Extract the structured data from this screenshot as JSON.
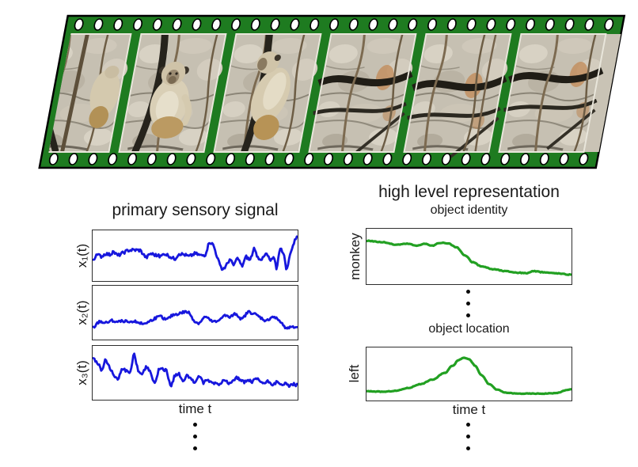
{
  "filmstrip": {
    "description": "slanted green film strip with six frames from a video of a monkey on ropes in front of a rock wall",
    "film_color": "#1e7b20",
    "outline_color": "#000000",
    "hole_color": "#ffffff",
    "frames": [
      {
        "content": "monkey partly visible, climbing among branches and rope"
      },
      {
        "content": "monkey sitting on dark rope, facing camera"
      },
      {
        "content": "monkey sitting on dark rope, side view"
      },
      {
        "content": "rock wall with dark ropes and vines"
      },
      {
        "content": "rock wall with dark ropes and vines"
      },
      {
        "content": "rock wall with dark ropes and vines, cut by strip edge"
      }
    ]
  },
  "left_panel": {
    "title": "primary sensory signal",
    "xlabel": "time t"
  },
  "right_panel": {
    "title": "high level representation",
    "xlabel": "time t"
  },
  "colors": {
    "signal_blue": "#1717dd",
    "representation_green": "#22a022",
    "plot_border": "#2e2e2e",
    "text": "#1a1a1a",
    "ellipsis_dots": "#0a0a0a"
  },
  "chart_data": [
    {
      "type": "line",
      "id": "x1",
      "ylabel": "x₁(t)",
      "color": "#1717dd",
      "stroke_width": 2.8,
      "smooth": false,
      "noise": 0.036,
      "seed": 7,
      "samples": 210,
      "xlabel": "time t",
      "ylim": [
        0,
        1
      ],
      "grid": false,
      "anchors": [
        [
          0,
          0.42
        ],
        [
          0.02,
          0.52
        ],
        [
          0.04,
          0.48
        ],
        [
          0.06,
          0.55
        ],
        [
          0.08,
          0.52
        ],
        [
          0.1,
          0.58
        ],
        [
          0.12,
          0.5
        ],
        [
          0.14,
          0.55
        ],
        [
          0.17,
          0.62
        ],
        [
          0.2,
          0.63
        ],
        [
          0.23,
          0.62
        ],
        [
          0.26,
          0.45
        ],
        [
          0.28,
          0.55
        ],
        [
          0.3,
          0.52
        ],
        [
          0.33,
          0.48
        ],
        [
          0.35,
          0.55
        ],
        [
          0.37,
          0.5
        ],
        [
          0.4,
          0.42
        ],
        [
          0.42,
          0.55
        ],
        [
          0.45,
          0.52
        ],
        [
          0.47,
          0.48
        ],
        [
          0.5,
          0.55
        ],
        [
          0.53,
          0.5
        ],
        [
          0.55,
          0.52
        ],
        [
          0.57,
          0.82
        ],
        [
          0.59,
          0.74
        ],
        [
          0.61,
          0.45
        ],
        [
          0.63,
          0.18
        ],
        [
          0.65,
          0.25
        ],
        [
          0.67,
          0.42
        ],
        [
          0.69,
          0.28
        ],
        [
          0.71,
          0.45
        ],
        [
          0.73,
          0.25
        ],
        [
          0.75,
          0.48
        ],
        [
          0.77,
          0.4
        ],
        [
          0.79,
          0.65
        ],
        [
          0.81,
          0.45
        ],
        [
          0.83,
          0.42
        ],
        [
          0.85,
          0.55
        ],
        [
          0.87,
          0.38
        ],
        [
          0.89,
          0.45
        ],
        [
          0.9,
          0.2
        ],
        [
          0.92,
          0.72
        ],
        [
          0.94,
          0.45
        ],
        [
          0.95,
          0.15
        ],
        [
          0.97,
          0.6
        ],
        [
          1,
          0.95
        ]
      ]
    },
    {
      "type": "line",
      "id": "x2",
      "ylabel": "x₂(t)",
      "color": "#1717dd",
      "stroke_width": 2.8,
      "smooth": false,
      "noise": 0.028,
      "seed": 13,
      "samples": 210,
      "xlabel": "time t",
      "ylim": [
        0,
        1
      ],
      "grid": false,
      "anchors": [
        [
          0,
          0.18
        ],
        [
          0.03,
          0.32
        ],
        [
          0.06,
          0.28
        ],
        [
          0.09,
          0.33
        ],
        [
          0.12,
          0.3
        ],
        [
          0.15,
          0.33
        ],
        [
          0.18,
          0.28
        ],
        [
          0.21,
          0.32
        ],
        [
          0.24,
          0.26
        ],
        [
          0.27,
          0.3
        ],
        [
          0.3,
          0.38
        ],
        [
          0.33,
          0.42
        ],
        [
          0.36,
          0.35
        ],
        [
          0.39,
          0.45
        ],
        [
          0.42,
          0.48
        ],
        [
          0.45,
          0.52
        ],
        [
          0.47,
          0.5
        ],
        [
          0.5,
          0.3
        ],
        [
          0.52,
          0.28
        ],
        [
          0.55,
          0.42
        ],
        [
          0.58,
          0.32
        ],
        [
          0.61,
          0.3
        ],
        [
          0.64,
          0.45
        ],
        [
          0.67,
          0.4
        ],
        [
          0.7,
          0.48
        ],
        [
          0.73,
          0.35
        ],
        [
          0.76,
          0.52
        ],
        [
          0.79,
          0.48
        ],
        [
          0.82,
          0.4
        ],
        [
          0.85,
          0.32
        ],
        [
          0.88,
          0.42
        ],
        [
          0.91,
          0.35
        ],
        [
          0.94,
          0.2
        ],
        [
          0.97,
          0.18
        ],
        [
          1,
          0.2
        ]
      ]
    },
    {
      "type": "line",
      "id": "x3",
      "ylabel": "x₃(t)",
      "color": "#1717dd",
      "stroke_width": 2.8,
      "smooth": false,
      "noise": 0.034,
      "seed": 21,
      "samples": 210,
      "xlabel": "time t",
      "ylim": [
        0,
        1
      ],
      "grid": false,
      "anchors": [
        [
          0,
          0.8
        ],
        [
          0.02,
          0.72
        ],
        [
          0.04,
          0.55
        ],
        [
          0.06,
          0.78
        ],
        [
          0.08,
          0.62
        ],
        [
          0.1,
          0.45
        ],
        [
          0.12,
          0.35
        ],
        [
          0.14,
          0.6
        ],
        [
          0.16,
          0.55
        ],
        [
          0.18,
          0.48
        ],
        [
          0.2,
          0.92
        ],
        [
          0.22,
          0.55
        ],
        [
          0.24,
          0.48
        ],
        [
          0.26,
          0.62
        ],
        [
          0.28,
          0.55
        ],
        [
          0.3,
          0.25
        ],
        [
          0.32,
          0.55
        ],
        [
          0.34,
          0.58
        ],
        [
          0.36,
          0.55
        ],
        [
          0.38,
          0.18
        ],
        [
          0.4,
          0.45
        ],
        [
          0.42,
          0.5
        ],
        [
          0.44,
          0.3
        ],
        [
          0.46,
          0.48
        ],
        [
          0.48,
          0.35
        ],
        [
          0.5,
          0.3
        ],
        [
          0.52,
          0.45
        ],
        [
          0.54,
          0.28
        ],
        [
          0.56,
          0.35
        ],
        [
          0.58,
          0.3
        ],
        [
          0.6,
          0.28
        ],
        [
          0.62,
          0.25
        ],
        [
          0.64,
          0.38
        ],
        [
          0.66,
          0.3
        ],
        [
          0.68,
          0.28
        ],
        [
          0.7,
          0.42
        ],
        [
          0.72,
          0.35
        ],
        [
          0.74,
          0.3
        ],
        [
          0.76,
          0.35
        ],
        [
          0.78,
          0.3
        ],
        [
          0.8,
          0.38
        ],
        [
          0.82,
          0.32
        ],
        [
          0.84,
          0.28
        ],
        [
          0.86,
          0.32
        ],
        [
          0.88,
          0.26
        ],
        [
          0.9,
          0.3
        ],
        [
          0.92,
          0.24
        ],
        [
          0.94,
          0.28
        ],
        [
          0.96,
          0.22
        ],
        [
          0.98,
          0.26
        ],
        [
          1,
          0.24
        ]
      ]
    },
    {
      "type": "line",
      "id": "object-identity",
      "subtitle": "object identity",
      "ylabel": "monkey",
      "color": "#22a022",
      "stroke_width": 3.2,
      "smooth": true,
      "noise": 0.008,
      "seed": 5,
      "samples": 170,
      "ylim": [
        0,
        1
      ],
      "grid": false,
      "anchors": [
        [
          0,
          0.82
        ],
        [
          0.08,
          0.79
        ],
        [
          0.14,
          0.74
        ],
        [
          0.2,
          0.76
        ],
        [
          0.24,
          0.72
        ],
        [
          0.28,
          0.76
        ],
        [
          0.32,
          0.72
        ],
        [
          0.36,
          0.78
        ],
        [
          0.4,
          0.76
        ],
        [
          0.44,
          0.68
        ],
        [
          0.48,
          0.52
        ],
        [
          0.52,
          0.38
        ],
        [
          0.56,
          0.3
        ],
        [
          0.62,
          0.24
        ],
        [
          0.68,
          0.2
        ],
        [
          0.74,
          0.17
        ],
        [
          0.78,
          0.16
        ],
        [
          0.82,
          0.2
        ],
        [
          0.86,
          0.18
        ],
        [
          0.92,
          0.16
        ],
        [
          1,
          0.13
        ]
      ]
    },
    {
      "type": "line",
      "id": "object-location",
      "subtitle": "object location",
      "ylabel": "left",
      "color": "#22a022",
      "stroke_width": 3.2,
      "smooth": true,
      "noise": 0.006,
      "seed": 11,
      "samples": 170,
      "xlabel": "time t",
      "ylim": [
        0,
        1
      ],
      "grid": false,
      "anchors": [
        [
          0,
          0.13
        ],
        [
          0.08,
          0.12
        ],
        [
          0.14,
          0.14
        ],
        [
          0.2,
          0.2
        ],
        [
          0.26,
          0.28
        ],
        [
          0.32,
          0.38
        ],
        [
          0.38,
          0.52
        ],
        [
          0.42,
          0.68
        ],
        [
          0.45,
          0.8
        ],
        [
          0.475,
          0.85
        ],
        [
          0.5,
          0.82
        ],
        [
          0.53,
          0.68
        ],
        [
          0.56,
          0.48
        ],
        [
          0.6,
          0.28
        ],
        [
          0.64,
          0.16
        ],
        [
          0.68,
          0.1
        ],
        [
          0.74,
          0.08
        ],
        [
          0.8,
          0.08
        ],
        [
          0.86,
          0.08
        ],
        [
          0.92,
          0.09
        ],
        [
          1,
          0.17
        ]
      ]
    }
  ]
}
